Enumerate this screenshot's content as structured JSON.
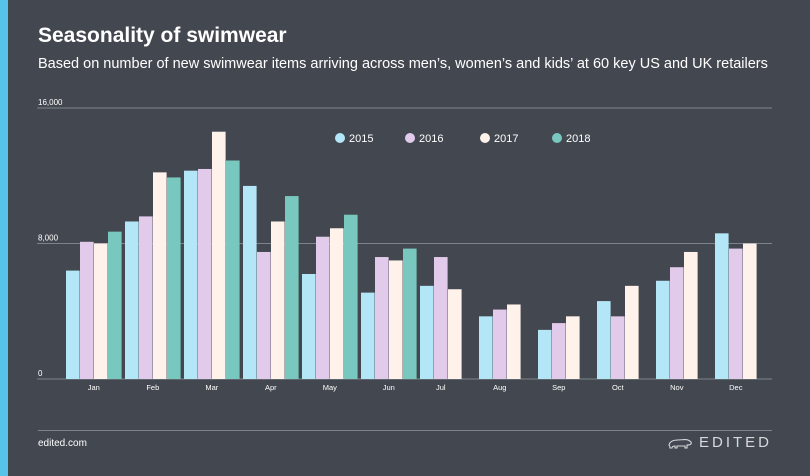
{
  "header": {
    "title": "Seasonality of swimwear",
    "subtitle": "Based on number of new swimwear items arriving across men’s, women’s and kids’ at 60 key US and UK retailers"
  },
  "footer": {
    "site": "edited.com",
    "brand": "EDITED",
    "brand_icon": "polar-bear-icon"
  },
  "colors": {
    "background": "#434850",
    "accent": "#56c3e8"
  },
  "chart_data": {
    "type": "bar",
    "categories": [
      "Jan",
      "Feb",
      "Mar",
      "Apr",
      "May",
      "Jun",
      "Jul",
      "Aug",
      "Sep",
      "Oct",
      "Nov",
      "Dec"
    ],
    "ylim": [
      0,
      16000
    ],
    "yticks": [
      0,
      8000,
      16000
    ],
    "ytick_labels": [
      "0",
      "8,000",
      "16,000"
    ],
    "grid": true,
    "legend_position": "top-center",
    "series": [
      {
        "name": "2015",
        "color": "#b3e6f7",
        "values": [
          6400,
          9300,
          12300,
          11400,
          6200,
          5100,
          5500,
          3700,
          2900,
          4600,
          5800,
          8600
        ]
      },
      {
        "name": "2016",
        "color": "#e2caea",
        "values": [
          8100,
          9600,
          12400,
          7500,
          8400,
          7200,
          7200,
          4100,
          3300,
          3700,
          6600,
          7700
        ]
      },
      {
        "name": "2017",
        "color": "#fff2ea",
        "values": [
          8000,
          12200,
          14600,
          9300,
          8900,
          7000,
          5300,
          4400,
          3700,
          5500,
          7500,
          8000
        ]
      },
      {
        "name": "2018",
        "color": "#79c8bf",
        "values": [
          8700,
          11900,
          12900,
          10800,
          9700,
          7700,
          null,
          null,
          null,
          null,
          null,
          null
        ]
      }
    ]
  }
}
